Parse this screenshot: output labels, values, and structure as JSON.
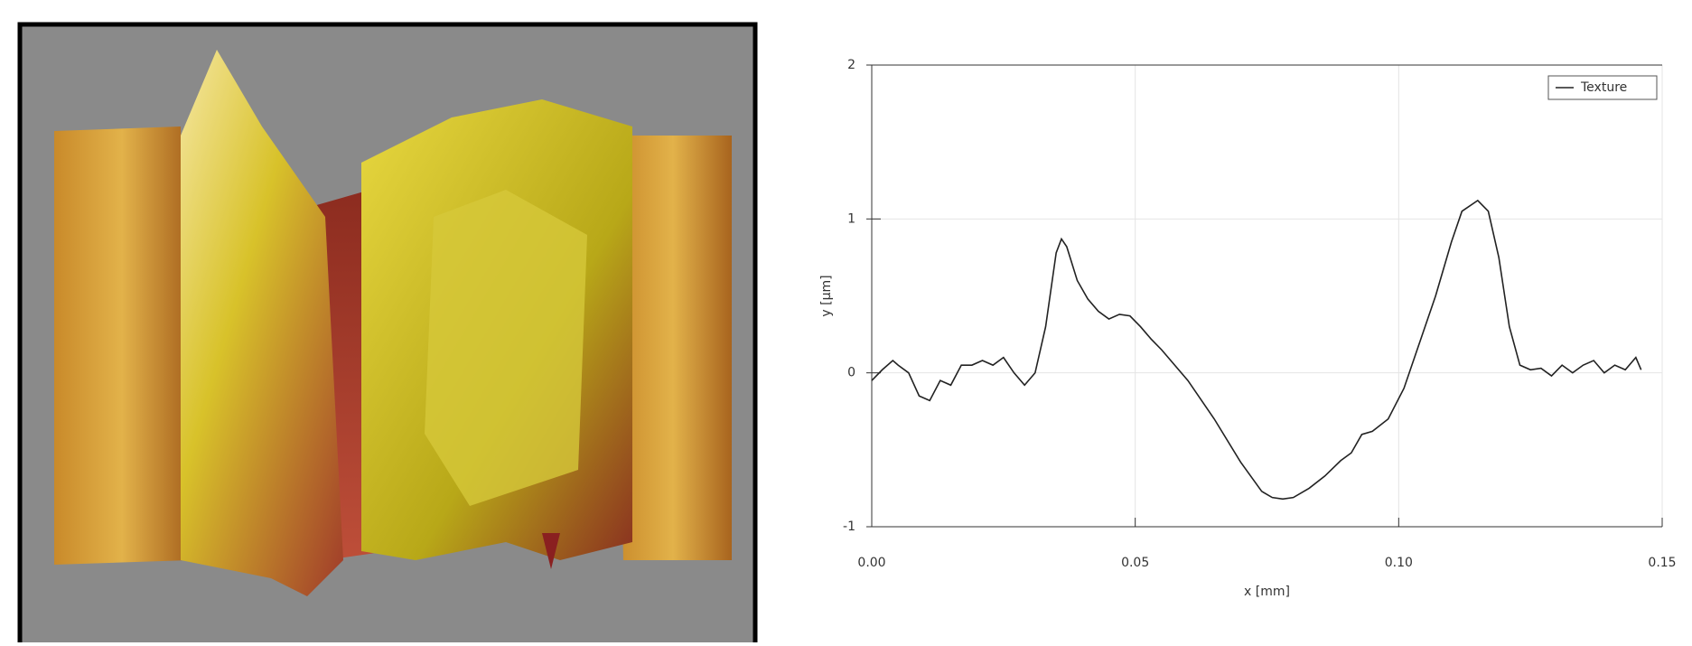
{
  "chart_data": {
    "type": "line",
    "xlabel": "x [mm]",
    "ylabel": "y [µm]",
    "x": [
      0,
      0.002,
      0.004,
      0.005,
      0.007,
      0.009,
      0.011,
      0.013,
      0.015,
      0.017,
      0.019,
      0.021,
      0.023,
      0.025,
      0.027,
      0.029,
      0.031,
      0.033,
      0.035,
      0.036,
      0.037,
      0.039,
      0.041,
      0.043,
      0.045,
      0.047,
      0.049,
      0.051,
      0.053,
      0.055,
      0.06,
      0.065,
      0.07,
      0.074,
      0.076,
      0.078,
      0.08,
      0.083,
      0.086,
      0.089,
      0.091,
      0.093,
      0.095,
      0.098,
      0.101,
      0.104,
      0.107,
      0.11,
      0.112,
      0.115,
      0.117,
      0.119,
      0.121,
      0.123,
      0.125,
      0.127,
      0.129,
      0.131,
      0.133,
      0.135,
      0.137,
      0.139,
      0.141,
      0.143,
      0.145,
      0.146
    ],
    "series": [
      {
        "name": "Texture",
        "color": "#222222",
        "values": [
          -0.05,
          0.02,
          0.08,
          0.05,
          0.0,
          -0.15,
          -0.18,
          -0.05,
          -0.08,
          0.05,
          0.05,
          0.08,
          0.05,
          0.1,
          0.0,
          -0.08,
          0.0,
          0.3,
          0.78,
          0.87,
          0.82,
          0.6,
          0.48,
          0.4,
          0.35,
          0.38,
          0.37,
          0.3,
          0.22,
          0.15,
          -0.05,
          -0.3,
          -0.58,
          -0.77,
          -0.81,
          -0.82,
          -0.81,
          -0.75,
          -0.67,
          -0.57,
          -0.52,
          -0.4,
          -0.38,
          -0.3,
          -0.1,
          0.2,
          0.5,
          0.85,
          1.05,
          1.12,
          1.05,
          0.75,
          0.3,
          0.05,
          0.02,
          0.03,
          -0.02,
          0.05,
          0.0,
          0.05,
          0.08,
          0.0,
          0.05,
          0.02,
          0.1,
          0.02
        ]
      }
    ],
    "xlim": [
      0,
      0.15
    ],
    "ylim": [
      -1,
      2
    ],
    "xticks": [
      {
        "value": 0,
        "label": "0.00"
      },
      0.05,
      {
        "value": 0.1,
        "label": "0.10"
      },
      0.15
    ],
    "yticks": [
      -1,
      0,
      1,
      2
    ],
    "grid": true,
    "legend": "top-right"
  }
}
